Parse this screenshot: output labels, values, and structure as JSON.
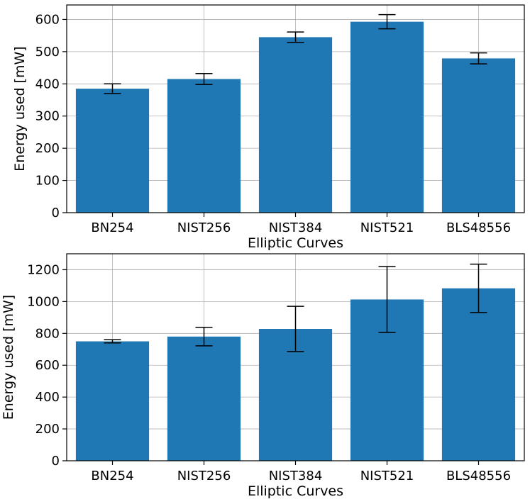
{
  "chart_data": [
    {
      "type": "bar",
      "title": "",
      "xlabel": "Elliptic Curves",
      "ylabel": "Energy used [mW]",
      "categories": [
        "BN254",
        "NIST256",
        "NIST384",
        "NIST521",
        "BLS48556"
      ],
      "values": [
        385,
        415,
        545,
        593,
        479
      ],
      "errors": [
        15,
        17,
        16,
        22,
        17
      ],
      "ylim": [
        0,
        645
      ],
      "yticks": [
        0,
        100,
        200,
        300,
        400,
        500,
        600
      ],
      "grid": true,
      "legend": "none",
      "bar_color": "#1f77b4"
    },
    {
      "type": "bar",
      "title": "",
      "xlabel": "Elliptic Curves",
      "ylabel": "Energy used [mW]",
      "categories": [
        "BN254",
        "NIST256",
        "NIST384",
        "NIST521",
        "BLS48556"
      ],
      "values": [
        750,
        780,
        828,
        1013,
        1083
      ],
      "errors": [
        10,
        58,
        142,
        207,
        152
      ],
      "ylim": [
        0,
        1300
      ],
      "yticks": [
        0,
        200,
        400,
        600,
        800,
        1000,
        1200
      ],
      "grid": true,
      "legend": "none",
      "bar_color": "#1f77b4"
    }
  ]
}
